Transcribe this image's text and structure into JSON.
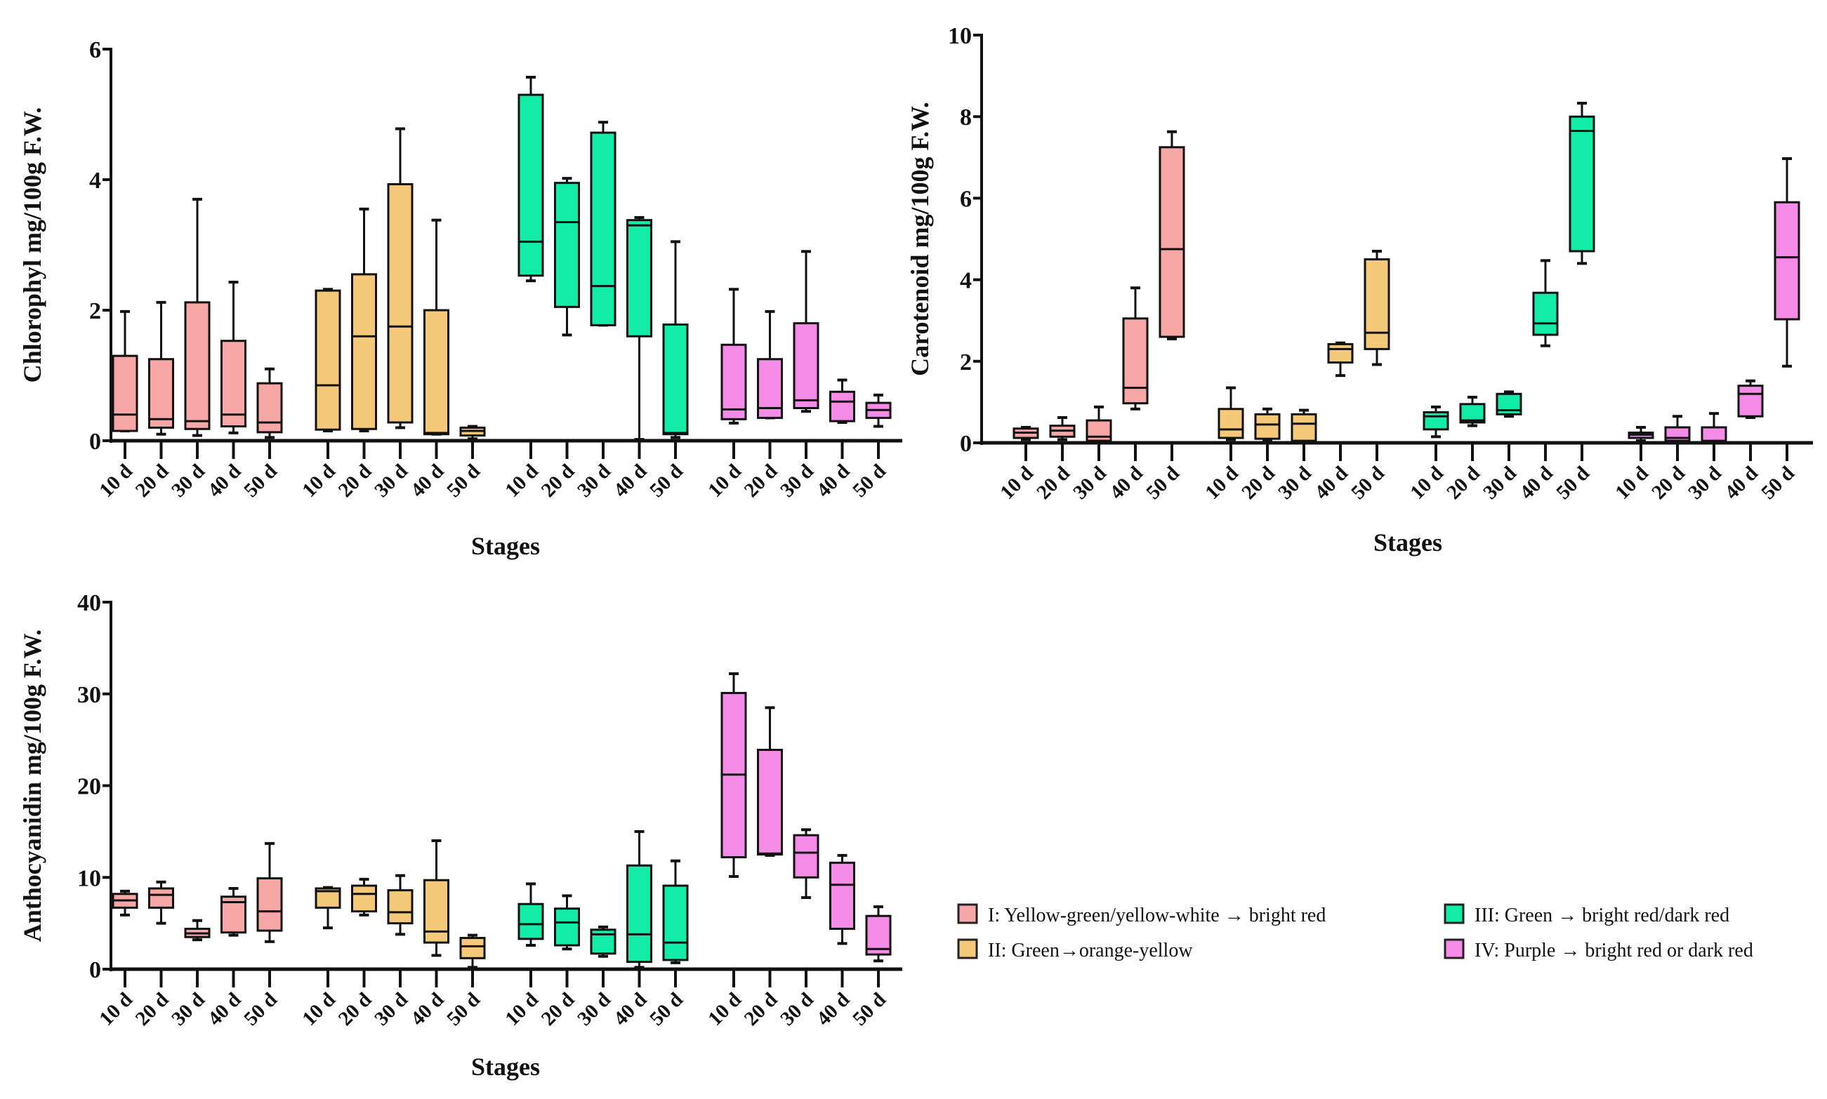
{
  "chart_data": [
    {
      "type": "box",
      "ylabel": "Chlorophyl mg/100g  F.W.",
      "xlabel": "Stages",
      "ylim": [
        0,
        6
      ],
      "yticks": [
        "0",
        "2",
        "4",
        "6"
      ],
      "categories": [
        "10 d",
        "20 d",
        "30 d",
        "40 d",
        "50 d"
      ],
      "series": [
        {
          "name": "I",
          "boxes": [
            [
              0.15,
              0.15,
              0.4,
              1.3,
              1.98
            ],
            [
              0.1,
              0.2,
              0.33,
              1.25,
              2.12
            ],
            [
              0.08,
              0.18,
              0.3,
              2.12,
              3.7
            ],
            [
              0.12,
              0.22,
              0.4,
              1.53,
              2.43
            ],
            [
              0.05,
              0.13,
              0.28,
              0.88,
              1.1
            ]
          ]
        },
        {
          "name": "II",
          "boxes": [
            [
              0.15,
              0.17,
              0.85,
              2.3,
              2.32
            ],
            [
              0.15,
              0.18,
              1.6,
              2.55,
              3.55
            ],
            [
              0.2,
              0.28,
              1.75,
              3.93,
              4.78
            ],
            [
              0.1,
              0.1,
              0.12,
              2.0,
              3.38
            ],
            [
              0.03,
              0.08,
              0.15,
              0.2,
              0.22
            ]
          ]
        },
        {
          "name": "III",
          "boxes": [
            [
              2.45,
              2.53,
              3.05,
              5.3,
              5.57
            ],
            [
              1.62,
              2.05,
              3.35,
              3.95,
              4.02
            ],
            [
              1.77,
              1.77,
              2.37,
              4.72,
              4.88
            ],
            [
              0.02,
              1.6,
              3.3,
              3.38,
              3.42
            ],
            [
              0.05,
              0.1,
              0.12,
              1.78,
              3.05
            ]
          ]
        },
        {
          "name": "IV",
          "boxes": [
            [
              0.27,
              0.33,
              0.48,
              1.47,
              2.32
            ],
            [
              0.35,
              0.35,
              0.5,
              1.25,
              1.98
            ],
            [
              0.45,
              0.5,
              0.62,
              1.8,
              2.9
            ],
            [
              0.28,
              0.3,
              0.6,
              0.75,
              0.93
            ],
            [
              0.22,
              0.35,
              0.47,
              0.58,
              0.7
            ]
          ]
        }
      ]
    },
    {
      "type": "box",
      "ylabel": "Carotenoid mg/100g  F.W.",
      "xlabel": "Stages",
      "ylim": [
        0,
        10
      ],
      "yticks": [
        "0",
        "2",
        "4",
        "6",
        "8",
        "10"
      ],
      "categories": [
        "10 d",
        "20 d",
        "30 d",
        "40 d",
        "50 d"
      ],
      "series": [
        {
          "name": "I",
          "boxes": [
            [
              0.08,
              0.12,
              0.25,
              0.35,
              0.38
            ],
            [
              0.08,
              0.15,
              0.3,
              0.42,
              0.62
            ],
            [
              0.02,
              0.05,
              0.15,
              0.55,
              0.88
            ],
            [
              0.83,
              0.97,
              1.35,
              3.05,
              3.8
            ],
            [
              2.55,
              2.6,
              4.75,
              7.25,
              7.63
            ]
          ]
        },
        {
          "name": "II",
          "boxes": [
            [
              0.08,
              0.12,
              0.33,
              0.83,
              1.35
            ],
            [
              0.05,
              0.1,
              0.45,
              0.7,
              0.83
            ],
            [
              0.02,
              0.05,
              0.47,
              0.7,
              0.8
            ],
            [
              1.65,
              1.97,
              2.3,
              2.42,
              2.45
            ],
            [
              1.92,
              2.3,
              2.7,
              4.5,
              4.7
            ]
          ]
        },
        {
          "name": "III",
          "boxes": [
            [
              0.15,
              0.33,
              0.65,
              0.75,
              0.88
            ],
            [
              0.42,
              0.5,
              0.55,
              0.95,
              1.12
            ],
            [
              0.65,
              0.7,
              0.8,
              1.2,
              1.25
            ],
            [
              2.38,
              2.65,
              2.93,
              3.68,
              4.47
            ],
            [
              4.4,
              4.7,
              7.65,
              8.0,
              8.33
            ]
          ]
        },
        {
          "name": "IV",
          "boxes": [
            [
              0.05,
              0.12,
              0.2,
              0.25,
              0.38
            ],
            [
              0.02,
              0.05,
              0.12,
              0.38,
              0.65
            ],
            [
              0.0,
              0.02,
              0.05,
              0.38,
              0.72
            ],
            [
              0.62,
              0.65,
              1.2,
              1.4,
              1.52
            ],
            [
              1.88,
              3.03,
              4.55,
              5.9,
              6.97
            ]
          ]
        }
      ]
    },
    {
      "type": "box",
      "ylabel": "Anthocyanidin mg/100g   F.W.",
      "xlabel": "Stages",
      "ylim": [
        0,
        40
      ],
      "yticks": [
        "0",
        "10",
        "20",
        "30",
        "40"
      ],
      "categories": [
        "10 d",
        "20 d",
        "30 d",
        "40 d",
        "50 d"
      ],
      "series": [
        {
          "name": "I",
          "boxes": [
            [
              5.9,
              6.7,
              7.5,
              8.2,
              8.5
            ],
            [
              5.0,
              6.7,
              8.1,
              8.8,
              9.5
            ],
            [
              3.2,
              3.5,
              3.9,
              4.4,
              5.3
            ],
            [
              3.7,
              4.0,
              7.3,
              7.9,
              8.8
            ],
            [
              3.0,
              4.2,
              6.3,
              9.9,
              13.7
            ]
          ]
        },
        {
          "name": "II",
          "boxes": [
            [
              4.5,
              6.7,
              8.5,
              8.8,
              8.9
            ],
            [
              5.9,
              6.3,
              8.2,
              9.1,
              9.8
            ],
            [
              3.8,
              5.0,
              6.2,
              8.6,
              10.2
            ],
            [
              1.5,
              2.9,
              4.1,
              9.7,
              14.0
            ],
            [
              0.2,
              1.2,
              2.5,
              3.4,
              3.7
            ]
          ]
        },
        {
          "name": "III",
          "boxes": [
            [
              2.6,
              3.3,
              4.9,
              7.1,
              9.3
            ],
            [
              2.2,
              2.6,
              5.1,
              6.6,
              8.0
            ],
            [
              1.4,
              1.7,
              3.8,
              4.3,
              4.6
            ],
            [
              0.2,
              0.8,
              3.8,
              11.3,
              15.0
            ],
            [
              0.7,
              1.0,
              2.9,
              9.1,
              11.8
            ]
          ]
        },
        {
          "name": "IV",
          "boxes": [
            [
              10.1,
              12.2,
              21.2,
              30.1,
              32.2
            ],
            [
              12.4,
              12.5,
              12.6,
              23.9,
              28.5
            ],
            [
              7.8,
              10.0,
              12.7,
              14.6,
              15.2
            ],
            [
              2.8,
              4.4,
              9.2,
              11.6,
              12.4
            ],
            [
              0.9,
              1.6,
              2.2,
              5.8,
              6.8
            ]
          ]
        }
      ]
    }
  ],
  "box_stat_order": [
    "min",
    "q1",
    "median",
    "q3",
    "max"
  ],
  "colors": {
    "I": "#f7a7a5",
    "II": "#f4c97a",
    "III": "#12eca7",
    "IV": "#f48be6"
  },
  "legend": [
    {
      "key": "I",
      "label": "I: Yellow-green/yellow-white → bright red"
    },
    {
      "key": "II",
      "label": "II: Green→orange-yellow"
    },
    {
      "key": "III",
      "label": "III: Green → bright red/dark red"
    },
    {
      "key": "IV",
      "label": "IV: Purple → bright red or dark red"
    }
  ]
}
